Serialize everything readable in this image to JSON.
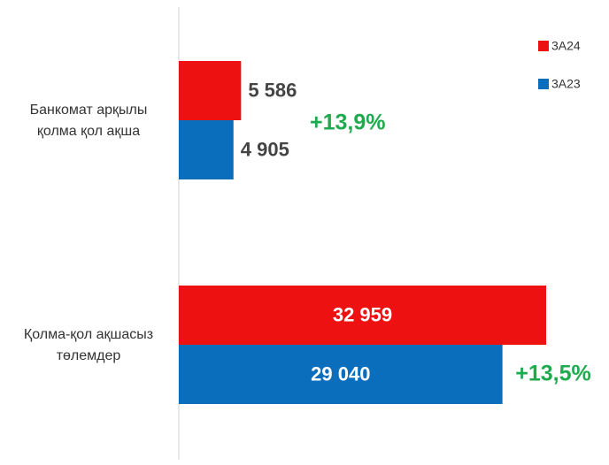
{
  "chart_data": {
    "type": "hbar",
    "categories": [
      [
        "Банкомат арқылы",
        "қолма қол ақша"
      ],
      [
        "Қолма-қол ақшасыз",
        "төлемдер"
      ]
    ],
    "series": [
      {
        "name": "3A24",
        "color": "#ee1111",
        "values": [
          5586,
          32959
        ],
        "value_labels": [
          "5 586",
          "32 959"
        ]
      },
      {
        "name": "3A23",
        "color": "#0a6ebd",
        "values": [
          4905,
          29040
        ],
        "value_labels": [
          "4 905",
          "29 040"
        ]
      }
    ],
    "annotations": [
      "+13,9%",
      "+13,5%"
    ],
    "xlim": [
      0,
      33000
    ],
    "legend": "top-right"
  }
}
